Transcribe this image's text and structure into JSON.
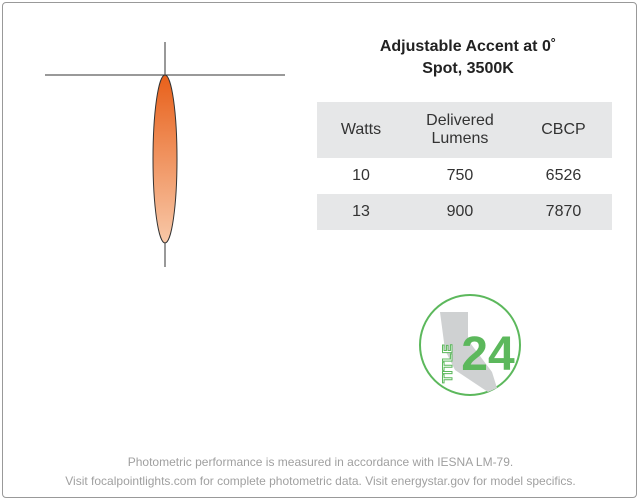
{
  "header": {
    "title_lines": [
      "Adjustable Accent at 0˚",
      "Spot, 3500K"
    ]
  },
  "table": {
    "headers": [
      "Watts",
      "Delivered Lumens",
      "CBCP"
    ],
    "rows": [
      [
        10,
        750,
        6526
      ],
      [
        13,
        900,
        7870
      ]
    ]
  },
  "logo": {
    "word": "TITLE",
    "number": "24"
  },
  "footer": {
    "lines": [
      "Photometric performance is measured in accordance with IESNA LM-79.",
      "Visit focalpointlights.com for complete photometric data. Visit energystar.gov for model specifics."
    ]
  }
}
